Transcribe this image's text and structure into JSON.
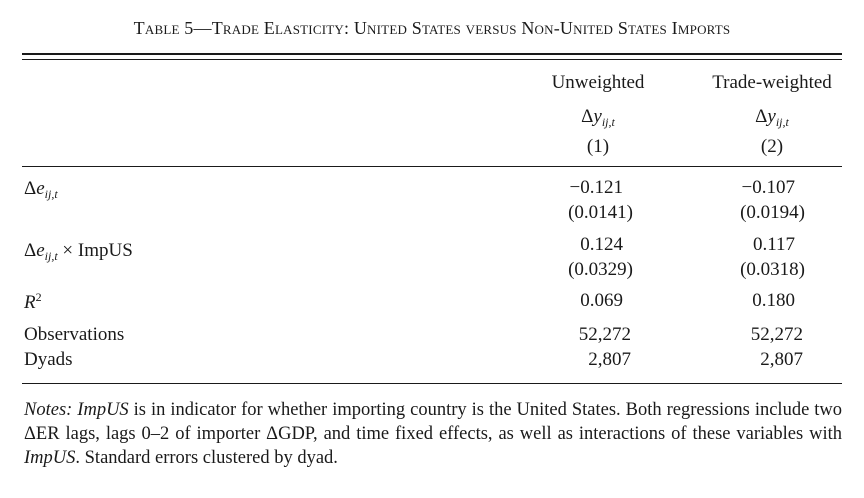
{
  "caption": {
    "table_number": "Table 5",
    "dash": "—",
    "title": "Trade Elasticity: United States versus Non-United States Imports"
  },
  "columns": [
    {
      "header": "Unweighted",
      "dep_var_delta": "Δ",
      "dep_var_base": "y",
      "dep_var_sub": "ij,t",
      "number": "(1)"
    },
    {
      "header": "Trade-weighted",
      "dep_var_delta": "Δ",
      "dep_var_base": "y",
      "dep_var_sub": "ij,t",
      "number": "(2)"
    }
  ],
  "rows": [
    {
      "label_delta": "Δ",
      "label_base": "e",
      "label_sub": "ij,t",
      "label_suffix": "",
      "coef": [
        "−0.121",
        "−0.107"
      ],
      "se": [
        "(0.0141)",
        "(0.0194)"
      ]
    },
    {
      "label_delta": "Δ",
      "label_base": "e",
      "label_sub": "ij,t",
      "label_suffix": " × ImpUS",
      "coef": [
        "0.124",
        "0.117"
      ],
      "se": [
        "(0.0329)",
        "(0.0318)"
      ]
    }
  ],
  "r2": {
    "label_base": "R",
    "label_sup": "2",
    "values": [
      "0.069",
      "0.180"
    ]
  },
  "observations": {
    "label": "Observations",
    "values": [
      "52,272",
      "52,272"
    ]
  },
  "dyads": {
    "label": "Dyads",
    "values": [
      "2,807",
      "2,807"
    ]
  },
  "notes": {
    "lead": "Notes:",
    "impus_1": "ImpUS",
    "text_1": " is in indicator for whether importing country is the United States. Both regressions include two ",
    "delta_1": "Δ",
    "text_2": "ER lags, lags 0–2 of importer ",
    "delta_2": "Δ",
    "text_3": "GDP, and time fixed effects, as well as interactions of these variables with ",
    "impus_2": "ImpUS",
    "text_4": ". Standard errors clustered by dyad."
  }
}
